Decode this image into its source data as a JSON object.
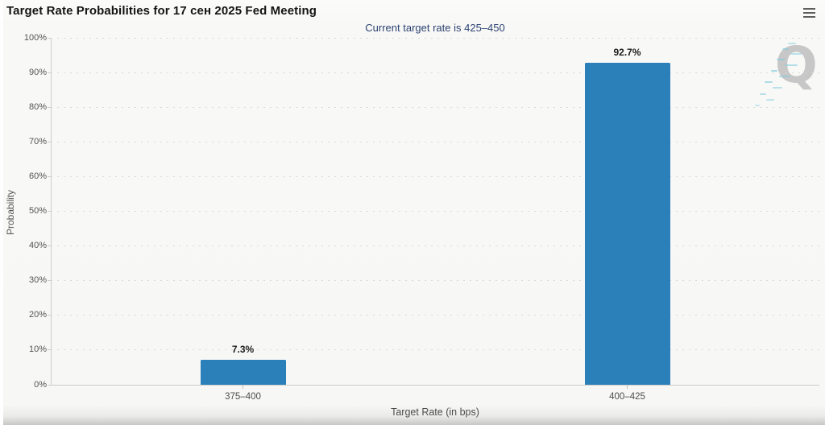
{
  "header": {
    "title": "Target Rate Probabilities for 17 сен 2025 Fed Meeting"
  },
  "chart_data": {
    "type": "bar",
    "title": "Target Rate Probabilities for 17 сен 2025 Fed Meeting",
    "subtitle": "Current target rate is 425–450",
    "categories": [
      "375–400",
      "400–425"
    ],
    "values": [
      7.3,
      92.7
    ],
    "value_labels": [
      "7.3%",
      "92.7%"
    ],
    "xlabel": "Target Rate (in bps)",
    "ylabel": "Probability",
    "ylim": [
      0,
      100
    ],
    "ytick_step": 10,
    "ytick_suffix": "%",
    "ytick_labels": [
      "0%",
      "10%",
      "20%",
      "30%",
      "40%",
      "50%",
      "60%",
      "70%",
      "80%",
      "90%",
      "100%"
    ],
    "grid": "dotted-horizontal",
    "legend": "none",
    "bar_color": "#2b80b9"
  },
  "watermark": {
    "letter": "Q"
  },
  "icons": {
    "menu": "hamburger-icon"
  },
  "colors": {
    "bar": "#2b80b9",
    "subtitle_text": "#2d4373",
    "axis_line": "#cccccc",
    "grid_dot": "#d9d9d7",
    "tick_label": "#555555",
    "value_label": "#1c1c1c",
    "background": "#f7f7f5",
    "watermark_gray": "#c7c7c7",
    "watermark_cyan": "#7ccade"
  }
}
